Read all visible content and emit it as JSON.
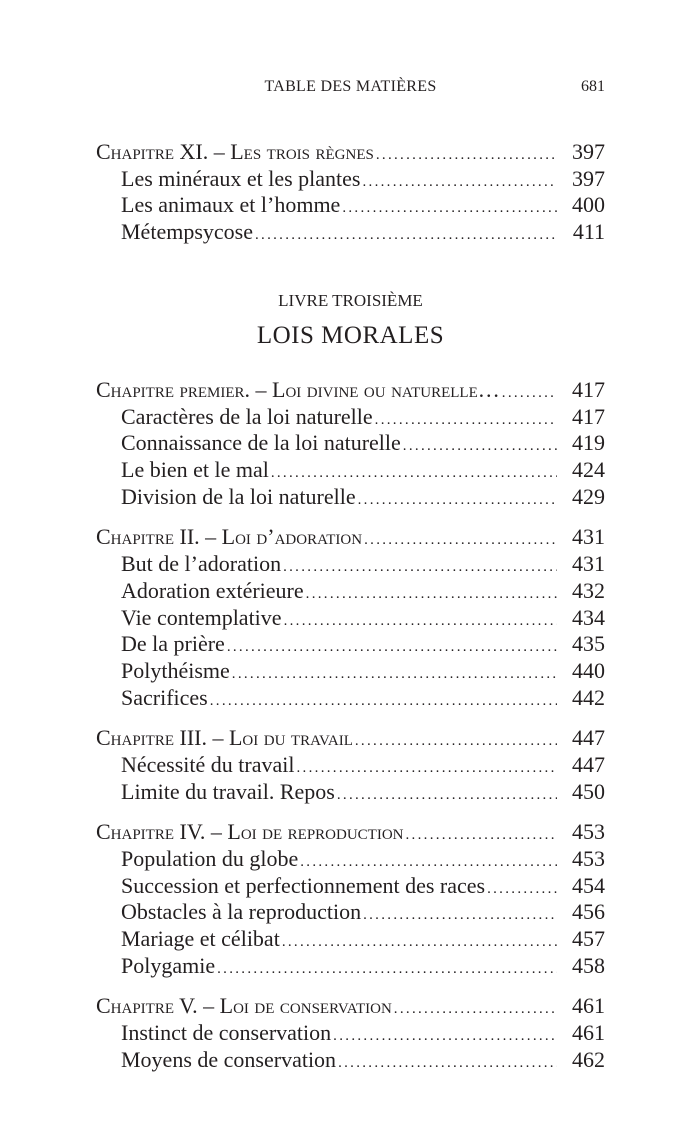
{
  "header": {
    "title": "TABLE DES MATIÈRES",
    "page_number": "681"
  },
  "part1": {
    "sections": [
      {
        "chapter": {
          "label": "Chapitre XI. – Les trois règnes",
          "page": "397"
        },
        "items": [
          {
            "label": "Les minéraux et les plantes",
            "page": "397"
          },
          {
            "label": "Les animaux et l’homme",
            "page": "400"
          },
          {
            "label": "Métempsycose",
            "page": "411"
          }
        ]
      }
    ]
  },
  "livre": {
    "subtitle": "LIVRE TROISIÈME",
    "title": "LOIS MORALES"
  },
  "part2": {
    "sections": [
      {
        "chapter": {
          "label": "Chapitre premier. – Loi divine ou naturelle…",
          "page": "417"
        },
        "items": [
          {
            "label": "Caractères de la loi naturelle",
            "page": "417"
          },
          {
            "label": "Connaissance de la loi naturelle",
            "page": "419"
          },
          {
            "label": "Le bien et le mal",
            "page": "424"
          },
          {
            "label": "Division de la loi naturelle",
            "page": "429"
          }
        ]
      },
      {
        "chapter": {
          "label": "Chapitre II. – Loi d’adoration",
          "page": "431"
        },
        "items": [
          {
            "label": "But de l’adoration",
            "page": "431"
          },
          {
            "label": "Adoration extérieure",
            "page": "432"
          },
          {
            "label": "Vie contemplative",
            "page": "434"
          },
          {
            "label": "De la prière",
            "page": "435"
          },
          {
            "label": "Polythéisme",
            "page": "440"
          },
          {
            "label": "Sacrifices",
            "page": "442"
          }
        ]
      },
      {
        "chapter": {
          "label": "Chapitre III. – Loi du travail",
          "page": "447"
        },
        "items": [
          {
            "label": "Nécessité du travail",
            "page": "447"
          },
          {
            "label": "Limite du travail. Repos",
            "page": "450"
          }
        ]
      },
      {
        "chapter": {
          "label": "Chapitre IV. – Loi de reproduction",
          "page": "453"
        },
        "items": [
          {
            "label": "Population du globe",
            "page": "453"
          },
          {
            "label": "Succession et perfectionnement des races",
            "page": "454"
          },
          {
            "label": "Obstacles à la reproduction",
            "page": "456"
          },
          {
            "label": "Mariage et célibat",
            "page": "457"
          },
          {
            "label": "Polygamie",
            "page": "458"
          }
        ]
      },
      {
        "chapter": {
          "label": "Chapitre V. – Loi de conservation",
          "page": "461"
        },
        "items": [
          {
            "label": "Instinct de conservation",
            "page": "461"
          },
          {
            "label": "Moyens de conservation",
            "page": "462"
          }
        ]
      }
    ]
  }
}
